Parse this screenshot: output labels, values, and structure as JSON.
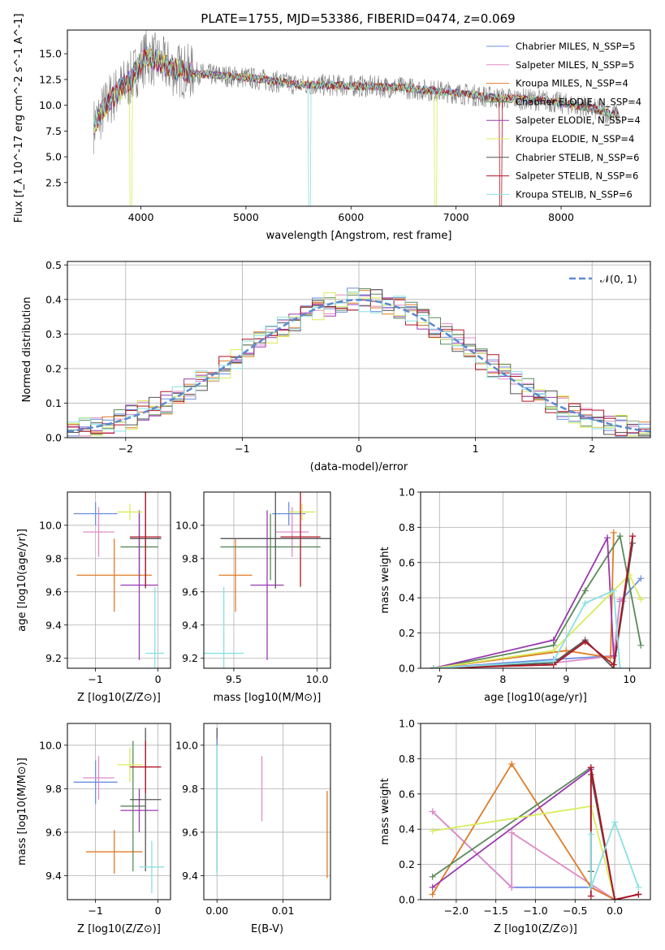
{
  "figure": {
    "title": "PLATE=1755, MJD=53386, FIBERID=0474, z=0.069"
  },
  "chart_data": [
    {
      "id": "spectrum",
      "type": "line",
      "xlabel": "wavelength [Angstrom, rest frame]",
      "ylabel": "Flux [f_λ 10^-17 erg cm^-2 s^-1 A^-1]",
      "xlim": [
        3300,
        8850
      ],
      "ylim": [
        0.2,
        17.3
      ],
      "xticks": [
        4000,
        5000,
        6000,
        7000,
        8000
      ],
      "yticks": [
        2.5,
        5.0,
        7.5,
        10.0,
        12.5,
        15.0
      ],
      "legend_position": "top-right",
      "observed_color": "#808080",
      "continuum": {
        "x": [
          3550,
          3700,
          3900,
          4050,
          4300,
          4600,
          5000,
          5500,
          6000,
          6500,
          7000,
          7400,
          7800,
          8200,
          8550
        ],
        "y": [
          8.0,
          10.5,
          12.5,
          14.8,
          13.5,
          13.0,
          12.7,
          12.0,
          11.9,
          11.7,
          11.2,
          10.7,
          10.5,
          9.9,
          9.0
        ]
      },
      "series": [
        {
          "name": "Chabrier MILES, N_SSP=5",
          "color": "#6b8fe0"
        },
        {
          "name": "Salpeter MILES, N_SSP=5",
          "color": "#e08cc8"
        },
        {
          "name": "Kroupa MILES, N_SSP=4",
          "color": "#e07b26"
        },
        {
          "name": "Chabrier ELODIE, N_SSP=4",
          "color": "#5a8a5a"
        },
        {
          "name": "Salpeter ELODIE, N_SSP=4",
          "color": "#9a38b0"
        },
        {
          "name": "Kroupa ELODIE, N_SSP=4",
          "color": "#d8ec5c"
        },
        {
          "name": "Chabrier STELIB, N_SSP=6",
          "color": "#555555"
        },
        {
          "name": "Salpeter STELIB, N_SSP=6",
          "color": "#b01424"
        },
        {
          "name": "Kroupa STELIB, N_SSP=6",
          "color": "#8ae0e0"
        }
      ]
    },
    {
      "id": "residuals",
      "type": "line",
      "xlabel": "(data-model)/error",
      "ylabel": "Normed distribution",
      "xlim": [
        -2.5,
        2.5
      ],
      "ylim": [
        0,
        0.51
      ],
      "xticks": [
        -2,
        -1,
        0,
        1,
        2
      ],
      "yticks": [
        0.0,
        0.1,
        0.2,
        0.3,
        0.4,
        0.5
      ],
      "grid": true,
      "legend_position": "top-right",
      "gaussian": {
        "name": "𝒩(0, 1)",
        "color": "#5a8ad0",
        "mean": 0,
        "sigma": 1
      }
    },
    {
      "id": "age_vs_Z",
      "type": "scatter",
      "xlabel": "Z [log10(Z/Z⊙)]",
      "ylabel": "age [log10(age/yr)]",
      "xlim": [
        -1.45,
        0.2
      ],
      "ylim": [
        9.14,
        10.2
      ],
      "xticks": [
        -1,
        0
      ],
      "yticks": [
        9.2,
        9.4,
        9.6,
        9.8,
        10.0
      ],
      "grid": true,
      "points": [
        {
          "color": "#6b8fe0",
          "x": -1.0,
          "xerr": 0.35,
          "y": 10.07,
          "yerr": 0.07
        },
        {
          "color": "#e08cc8",
          "x": -0.95,
          "xerr": 0.25,
          "y": 9.96,
          "yerr": 0.15
        },
        {
          "color": "#e07b26",
          "x": -0.7,
          "xerr": 0.6,
          "y": 9.7,
          "yerr": 0.22
        },
        {
          "color": "#5a8a5a",
          "x": -0.3,
          "xerr": 0.3,
          "y": 9.87,
          "yerr": 0.2
        },
        {
          "color": "#9a38b0",
          "x": -0.3,
          "xerr": 0.3,
          "y": 9.64,
          "yerr": 0.45
        },
        {
          "color": "#d8ec5c",
          "x": -0.45,
          "xerr": 0.2,
          "y": 10.08,
          "yerr": 0.05
        },
        {
          "color": "#555555",
          "x": -0.2,
          "xerr": 0.25,
          "y": 9.92,
          "yerr": 0.3
        },
        {
          "color": "#b01424",
          "x": -0.2,
          "xerr": 0.25,
          "y": 9.93,
          "yerr": 0.3
        },
        {
          "color": "#8ae0e0",
          "x": -0.05,
          "xerr": 0.15,
          "y": 9.23,
          "yerr": 0.4
        }
      ]
    },
    {
      "id": "age_vs_mass",
      "type": "scatter",
      "xlabel": "mass [log10(M/M⊙)]",
      "xlim": [
        9.32,
        10.08
      ],
      "ylim": [
        9.14,
        10.2
      ],
      "xticks": [
        9.5,
        10.0
      ],
      "yticks": [
        9.2,
        9.4,
        9.6,
        9.8,
        10.0
      ],
      "grid": true,
      "points": [
        {
          "color": "#6b8fe0",
          "x": 9.83,
          "xerr": 0.1,
          "y": 10.07,
          "yerr": 0.07
        },
        {
          "color": "#e08cc8",
          "x": 9.85,
          "xerr": 0.1,
          "y": 9.96,
          "yerr": 0.15
        },
        {
          "color": "#e07b26",
          "x": 9.51,
          "xerr": 0.1,
          "y": 9.7,
          "yerr": 0.22
        },
        {
          "color": "#5a8a5a",
          "x": 9.72,
          "xerr": 0.3,
          "y": 9.87,
          "yerr": 0.2
        },
        {
          "color": "#9a38b0",
          "x": 9.7,
          "xerr": 0.1,
          "y": 9.64,
          "yerr": 0.45
        },
        {
          "color": "#d8ec5c",
          "x": 9.91,
          "xerr": 0.08,
          "y": 10.08,
          "yerr": 0.05
        },
        {
          "color": "#555555",
          "x": 9.75,
          "xerr": 0.33,
          "y": 9.92,
          "yerr": 0.3
        },
        {
          "color": "#b01424",
          "x": 9.9,
          "xerr": 0.12,
          "y": 9.93,
          "yerr": 0.3
        },
        {
          "color": "#8ae0e0",
          "x": 9.44,
          "xerr": 0.12,
          "y": 9.23,
          "yerr": 0.4
        }
      ]
    },
    {
      "id": "mass_weight_vs_age",
      "type": "line",
      "xlabel": "age [log10(age/yr)]",
      "ylabel": "mass weight",
      "xlim": [
        6.7,
        10.33
      ],
      "ylim": [
        0,
        1.0
      ],
      "xticks": [
        7,
        8,
        9,
        10
      ],
      "yticks": [
        0.0,
        0.2,
        0.4,
        0.6,
        0.8,
        1.0
      ],
      "grid": true,
      "series": [
        {
          "color": "#6b8fe0",
          "x": [
            6.9,
            8.8,
            9.75,
            9.85,
            10.18
          ],
          "y": [
            0.0,
            0.05,
            0.07,
            0.38,
            0.51
          ]
        },
        {
          "color": "#e08cc8",
          "x": [
            6.9,
            8.8,
            9.75,
            9.85,
            9.9
          ],
          "y": [
            0.0,
            0.03,
            0.07,
            0.39,
            0.38
          ]
        },
        {
          "color": "#e07b26",
          "x": [
            6.9,
            9.0,
            9.7,
            9.75
          ],
          "y": [
            0.0,
            0.1,
            0.06,
            0.77
          ]
        },
        {
          "color": "#5a8a5a",
          "x": [
            6.9,
            8.8,
            9.3,
            9.85,
            10.18
          ],
          "y": [
            0.0,
            0.13,
            0.44,
            0.75,
            0.13
          ]
        },
        {
          "color": "#9a38b0",
          "x": [
            6.9,
            8.8,
            9.65,
            9.75
          ],
          "y": [
            0.0,
            0.16,
            0.74,
            0.07
          ]
        },
        {
          "color": "#d8ec5c",
          "x": [
            6.9,
            8.8,
            10.0,
            10.18
          ],
          "y": [
            0.0,
            0.1,
            0.53,
            0.39
          ]
        },
        {
          "color": "#555555",
          "x": [
            6.9,
            8.8,
            9.3,
            9.75,
            10.05
          ],
          "y": [
            0.0,
            0.03,
            0.16,
            0.0,
            0.71
          ]
        },
        {
          "color": "#b01424",
          "x": [
            6.9,
            8.8,
            9.3,
            9.75,
            10.05
          ],
          "y": [
            0.0,
            0.02,
            0.15,
            0.02,
            0.75
          ]
        },
        {
          "color": "#8ae0e0",
          "x": [
            6.9,
            8.8,
            9.3,
            9.75,
            9.85
          ],
          "y": [
            0.0,
            0.04,
            0.37,
            0.44,
            0.0
          ]
        }
      ]
    },
    {
      "id": "mass_vs_Z",
      "type": "scatter",
      "xlabel": "Z [log10(Z/Z⊙)]",
      "ylabel": "mass [log10(M/M⊙)]",
      "xlim": [
        -1.45,
        0.2
      ],
      "ylim": [
        9.29,
        10.1
      ],
      "xticks": [
        -1,
        0
      ],
      "yticks": [
        9.4,
        9.6,
        9.8,
        10.0
      ],
      "grid": true,
      "points": [
        {
          "color": "#6b8fe0",
          "x": -1.0,
          "xerr": 0.35,
          "y": 9.83,
          "yerr": 0.1
        },
        {
          "color": "#e08cc8",
          "x": -0.95,
          "xerr": 0.25,
          "y": 9.85,
          "yerr": 0.1
        },
        {
          "color": "#e07b26",
          "x": -0.7,
          "xerr": 0.45,
          "y": 9.51,
          "yerr": 0.1
        },
        {
          "color": "#5a8a5a",
          "x": -0.4,
          "xerr": 0.2,
          "y": 9.72,
          "yerr": 0.3
        },
        {
          "color": "#9a38b0",
          "x": -0.3,
          "xerr": 0.3,
          "y": 9.7,
          "yerr": 0.1
        },
        {
          "color": "#d8ec5c",
          "x": -0.45,
          "xerr": 0.2,
          "y": 9.91,
          "yerr": 0.08
        },
        {
          "color": "#555555",
          "x": -0.2,
          "xerr": 0.25,
          "y": 9.75,
          "yerr": 0.33
        },
        {
          "color": "#b01424",
          "x": -0.2,
          "xerr": 0.25,
          "y": 9.9,
          "yerr": 0.12
        },
        {
          "color": "#8ae0e0",
          "x": -0.1,
          "xerr": 0.2,
          "y": 9.44,
          "yerr": 0.12
        }
      ]
    },
    {
      "id": "mass_vs_EBV",
      "type": "scatter",
      "xlabel": "E(B-V)",
      "xlim": [
        -0.002,
        0.0172
      ],
      "ylim": [
        9.29,
        10.1
      ],
      "xticks": [
        0.0,
        0.01
      ],
      "yticks": [
        9.4,
        9.6,
        9.8,
        10.0
      ],
      "grid": true,
      "points": [
        {
          "color": "#555555",
          "x": 0.0,
          "xerr": 0,
          "y": 9.75,
          "yerr": 0.33
        },
        {
          "color": "#6b8fe0",
          "x": 0.0,
          "xerr": 0,
          "y": 9.83,
          "yerr": 0.2
        },
        {
          "color": "#8ae0e0",
          "x": 0.0,
          "xerr": 0,
          "y": 9.7,
          "yerr": 0.3
        },
        {
          "color": "#e08cc8",
          "x": 0.0068,
          "xerr": 0,
          "y": 9.8,
          "yerr": 0.15
        },
        {
          "color": "#e07b26",
          "x": 0.0167,
          "xerr": 0,
          "y": 9.59,
          "yerr": 0.2
        }
      ]
    },
    {
      "id": "mass_weight_vs_Z",
      "type": "line",
      "xlabel": "Z [log10(Z/Z⊙)]",
      "ylabel": "mass weight",
      "xlim": [
        -2.45,
        0.45
      ],
      "ylim": [
        0,
        1.0
      ],
      "xticks": [
        -2.0,
        -1.5,
        -1.0,
        -0.5,
        0.0
      ],
      "yticks": [
        0.0,
        0.2,
        0.4,
        0.6,
        0.8,
        1.0
      ],
      "grid": true,
      "series": [
        {
          "color": "#6b8fe0",
          "x": [
            -2.3,
            -1.3,
            -0.3,
            0.0,
            0.3
          ],
          "y": [
            0.5,
            0.07,
            0.07,
            0.0,
            0.03
          ]
        },
        {
          "color": "#e08cc8",
          "x": [
            -2.3,
            -1.3,
            -1.3,
            0.0,
            0.3
          ],
          "y": [
            0.5,
            0.07,
            0.38,
            0.0,
            0.03
          ]
        },
        {
          "color": "#e07b26",
          "x": [
            -2.3,
            -1.3,
            -0.3,
            0.0
          ],
          "y": [
            0.03,
            0.77,
            0.07,
            0.0
          ]
        },
        {
          "color": "#5a8a5a",
          "x": [
            -2.3,
            -0.3,
            0.0
          ],
          "y": [
            0.13,
            0.75,
            0.0
          ]
        },
        {
          "color": "#9a38b0",
          "x": [
            -2.3,
            -0.3,
            0.0
          ],
          "y": [
            0.07,
            0.74,
            0.0
          ]
        },
        {
          "color": "#d8ec5c",
          "x": [
            -2.3,
            -0.3,
            0.0
          ],
          "y": [
            0.39,
            0.53,
            0.0
          ]
        },
        {
          "color": "#555555",
          "x": [
            -0.3,
            -0.3,
            0.0,
            0.3
          ],
          "y": [
            0.16,
            0.71,
            0.0,
            0.03
          ]
        },
        {
          "color": "#b01424",
          "x": [
            -0.3,
            -0.3,
            0.0,
            0.3
          ],
          "y": [
            0.02,
            0.75,
            0.0,
            0.03
          ]
        },
        {
          "color": "#8ae0e0",
          "x": [
            -0.3,
            -0.3,
            0.0,
            0.3
          ],
          "y": [
            0.37,
            0.07,
            0.44,
            0.07
          ]
        }
      ]
    }
  ]
}
